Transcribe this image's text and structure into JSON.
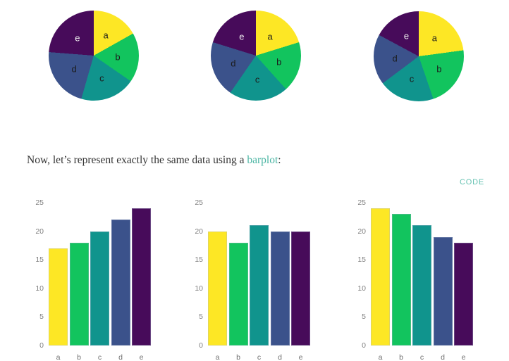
{
  "page": {
    "background": "#ffffff"
  },
  "palette": {
    "a": "#FDE725",
    "b": "#12C45E",
    "c": "#10948D",
    "d": "#3B528B",
    "e": "#470B5A"
  },
  "pie_label_colors": {
    "a": "#1c1c1c",
    "b": "#1c1c1c",
    "c": "#1c1c1c",
    "d": "#1c1c1c",
    "e": "#f2f2f2"
  },
  "text": {
    "sentence_prefix": "Now, let’s represent exactly the same data using a ",
    "link_label": "barplot",
    "sentence_suffix": ":",
    "link_color": "#4ab5a3",
    "text_color": "#333333"
  },
  "code_link": {
    "label": "CODE",
    "color": "#66c2b2"
  },
  "axis": {
    "tick_label_color": "#7f7f7f",
    "category_label_color": "#707070"
  },
  "chart_data": [
    {
      "type": "pie",
      "title": "",
      "categories": [
        "a",
        "b",
        "c",
        "d",
        "e"
      ],
      "values": [
        17,
        18,
        20,
        22,
        24
      ],
      "start_angle_deg": 0,
      "direction": "clockwise",
      "labels_inside": true
    },
    {
      "type": "pie",
      "title": "",
      "categories": [
        "a",
        "b",
        "c",
        "d",
        "e"
      ],
      "values": [
        20,
        18,
        21,
        20,
        20
      ],
      "start_angle_deg": 0,
      "direction": "clockwise",
      "labels_inside": true
    },
    {
      "type": "pie",
      "title": "",
      "categories": [
        "a",
        "b",
        "c",
        "d",
        "e"
      ],
      "values": [
        24,
        23,
        21,
        19,
        18
      ],
      "start_angle_deg": 0,
      "direction": "clockwise",
      "labels_inside": true
    },
    {
      "type": "bar",
      "title": "",
      "xlabel": "",
      "ylabel": "",
      "categories": [
        "a",
        "b",
        "c",
        "d",
        "e"
      ],
      "values": [
        17,
        18,
        20,
        22,
        24
      ],
      "yticks": [
        0,
        5,
        10,
        15,
        20,
        25
      ],
      "ylim": [
        0,
        25
      ],
      "grid": false,
      "legend": false
    },
    {
      "type": "bar",
      "title": "",
      "xlabel": "",
      "ylabel": "",
      "categories": [
        "a",
        "b",
        "c",
        "d",
        "e"
      ],
      "values": [
        20,
        18,
        21,
        20,
        20
      ],
      "yticks": [
        0,
        5,
        10,
        15,
        20,
        25
      ],
      "ylim": [
        0,
        25
      ],
      "grid": false,
      "legend": false
    },
    {
      "type": "bar",
      "title": "",
      "xlabel": "",
      "ylabel": "",
      "categories": [
        "a",
        "b",
        "c",
        "d",
        "e"
      ],
      "values": [
        24,
        23,
        21,
        19,
        18
      ],
      "yticks": [
        0,
        5,
        10,
        15,
        20,
        25
      ],
      "ylim": [
        0,
        25
      ],
      "grid": false,
      "legend": false
    }
  ]
}
